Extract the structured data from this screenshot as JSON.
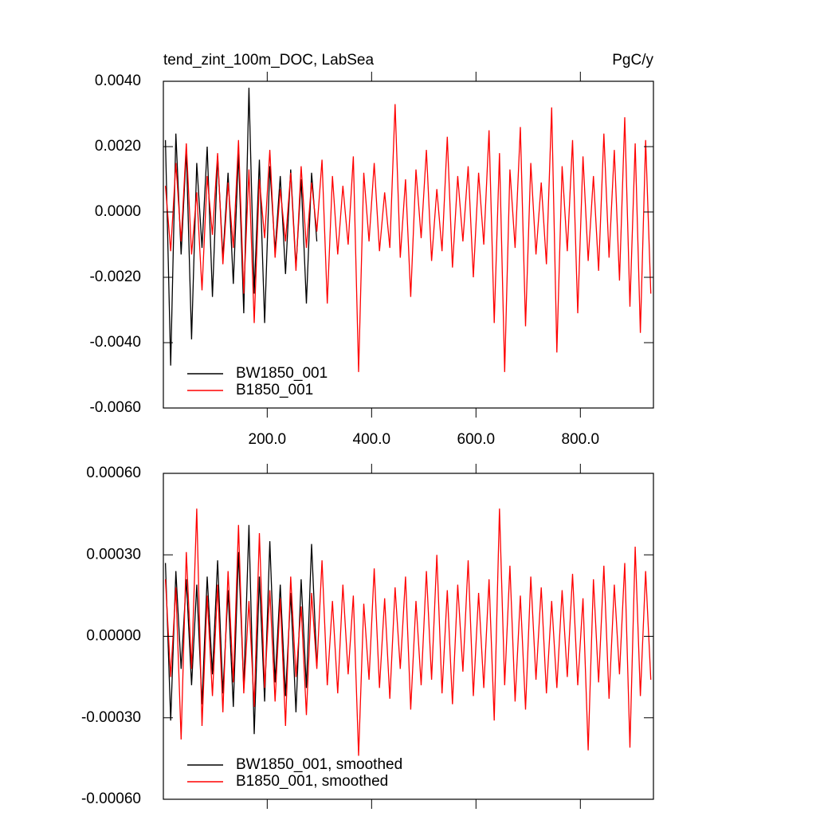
{
  "chart_data": [
    {
      "type": "line",
      "title_left": "tend_zint_100m_DOC, LabSea",
      "title_right": "PgC/y",
      "xlim": [
        1,
        940
      ],
      "xticks": [
        {
          "value": 200,
          "label": "200.0"
        },
        {
          "value": 400,
          "label": "400.0"
        },
        {
          "value": 600,
          "label": "600.0"
        },
        {
          "value": 800,
          "label": "800.0"
        }
      ],
      "xtick_labels": true,
      "ylim": [
        -0.006,
        0.004
      ],
      "yticks": [
        {
          "value": -0.006,
          "label": "-0.0060"
        },
        {
          "value": -0.004,
          "label": "-0.0040"
        },
        {
          "value": -0.002,
          "label": "-0.0020"
        },
        {
          "value": 0,
          "label": "0.0000"
        },
        {
          "value": 0.002,
          "label": "0.0020"
        },
        {
          "value": 0.004,
          "label": "0.0040"
        }
      ],
      "legend": "lower left",
      "series": [
        {
          "name": "BW1850_001",
          "color": "#000000",
          "x": [
            5,
            15,
            25,
            35,
            45,
            55,
            65,
            75,
            85,
            95,
            105,
            115,
            125,
            135,
            145,
            155,
            165,
            175,
            185,
            195,
            205,
            215,
            225,
            235,
            245,
            255,
            265,
            275,
            285,
            295
          ],
          "values": [
            0.0022,
            -0.0047,
            0.0024,
            -0.0013,
            0.0019,
            -0.0039,
            0.0015,
            -0.0011,
            0.002,
            -0.0026,
            0.0017,
            -0.0014,
            0.0012,
            -0.0022,
            0.0018,
            -0.0031,
            0.0038,
            -0.0025,
            0.0016,
            -0.0034,
            0.0014,
            -0.0012,
            0.0011,
            -0.0019,
            0.0013,
            -0.0017,
            0.001,
            -0.0028,
            0.0012,
            -0.0009
          ]
        },
        {
          "name": "B1850_001",
          "color": "#ff0000",
          "x": [
            5,
            15,
            25,
            35,
            45,
            55,
            65,
            75,
            85,
            95,
            105,
            115,
            125,
            135,
            145,
            155,
            165,
            175,
            185,
            195,
            205,
            215,
            225,
            235,
            245,
            255,
            265,
            275,
            285,
            295,
            305,
            315,
            325,
            335,
            345,
            355,
            365,
            375,
            385,
            395,
            405,
            415,
            425,
            435,
            445,
            455,
            465,
            475,
            485,
            495,
            505,
            515,
            525,
            535,
            545,
            555,
            565,
            575,
            585,
            595,
            605,
            615,
            625,
            635,
            645,
            655,
            665,
            675,
            685,
            695,
            705,
            715,
            725,
            735,
            745,
            755,
            765,
            775,
            785,
            795,
            805,
            815,
            825,
            835,
            845,
            855,
            865,
            875,
            885,
            895,
            905,
            915,
            925,
            935
          ],
          "values": [
            0.0008,
            -0.0012,
            0.0015,
            -0.0009,
            0.0021,
            -0.0013,
            0.0006,
            -0.0024,
            0.0011,
            -0.0007,
            0.0018,
            -0.0016,
            0.0009,
            -0.0011,
            0.0022,
            -0.0025,
            0.0013,
            -0.0034,
            0.001,
            -0.0008,
            0.0019,
            -0.0014,
            0.0007,
            -0.0009,
            0.0012,
            -0.0018,
            0.0014,
            -0.0011,
            0.0009,
            -0.0006,
            0.0016,
            -0.0028,
            0.0011,
            -0.0013,
            0.0008,
            -0.001,
            0.0017,
            -0.0049,
            0.0012,
            -0.0009,
            0.0015,
            -0.0012,
            0.0006,
            -0.0011,
            0.0033,
            -0.0014,
            0.001,
            -0.0026,
            0.0013,
            -0.0008,
            0.0019,
            -0.0015,
            0.0007,
            -0.0012,
            0.0023,
            -0.0017,
            0.0011,
            -0.0009,
            0.0014,
            -0.002,
            0.0012,
            -0.001,
            0.0025,
            -0.0034,
            0.0018,
            -0.0049,
            0.0013,
            -0.0011,
            0.0026,
            -0.0035,
            0.0015,
            -0.0013,
            0.0009,
            -0.0016,
            0.0032,
            -0.0043,
            0.0014,
            -0.0012,
            0.0022,
            -0.0031,
            0.0017,
            -0.0015,
            0.0011,
            -0.0018,
            0.0024,
            -0.0014,
            0.0019,
            -0.0021,
            0.0029,
            -0.0029,
            0.0021,
            -0.0037,
            0.0022,
            -0.0025
          ]
        }
      ]
    },
    {
      "type": "line",
      "xlim": [
        1,
        940
      ],
      "xticks": [
        200,
        400,
        600,
        800
      ],
      "xtick_labels": false,
      "ylim": [
        -0.0006,
        0.0006
      ],
      "yticks": [
        {
          "value": -0.0006,
          "label": "-0.00060"
        },
        {
          "value": -0.0003,
          "label": "-0.00030"
        },
        {
          "value": 0,
          "label": "0.00000"
        },
        {
          "value": 0.0003,
          "label": "0.00030"
        },
        {
          "value": 0.0006,
          "label": "0.00060"
        }
      ],
      "legend": "lower left",
      "series": [
        {
          "name": "BW1850_001, smoothed",
          "color": "#000000",
          "x": [
            5,
            15,
            25,
            35,
            45,
            55,
            65,
            75,
            85,
            95,
            105,
            115,
            125,
            135,
            145,
            155,
            165,
            175,
            185,
            195,
            205,
            215,
            225,
            235,
            245,
            255,
            265,
            275,
            285,
            295
          ],
          "values": [
            0.00027,
            -0.00031,
            0.00024,
            -0.00012,
            0.00021,
            -0.00018,
            0.00019,
            -0.00025,
            0.00022,
            -0.00014,
            0.00028,
            -0.00021,
            0.00017,
            -0.00026,
            0.00031,
            -0.00019,
            0.00041,
            -0.00036,
            0.00022,
            -0.00024,
            0.00035,
            -0.00017,
            0.00019,
            -0.00022,
            0.00016,
            -0.00028,
            0.00021,
            -0.00019,
            0.00034,
            -0.00011
          ]
        },
        {
          "name": "B1850_001, smoothed",
          "color": "#ff0000",
          "x": [
            5,
            15,
            25,
            35,
            45,
            55,
            65,
            75,
            85,
            95,
            105,
            115,
            125,
            135,
            145,
            155,
            165,
            175,
            185,
            195,
            205,
            215,
            225,
            235,
            245,
            255,
            265,
            275,
            285,
            295,
            305,
            315,
            325,
            335,
            345,
            355,
            365,
            375,
            385,
            395,
            405,
            415,
            425,
            435,
            445,
            455,
            465,
            475,
            485,
            495,
            505,
            515,
            525,
            535,
            545,
            555,
            565,
            575,
            585,
            595,
            605,
            615,
            625,
            635,
            645,
            655,
            665,
            675,
            685,
            695,
            705,
            715,
            725,
            735,
            745,
            755,
            765,
            775,
            785,
            795,
            805,
            815,
            825,
            835,
            845,
            855,
            865,
            875,
            885,
            895,
            905,
            915,
            925,
            935
          ],
          "values": [
            0.00021,
            -0.00015,
            0.00018,
            -0.00038,
            0.00031,
            -0.00012,
            0.00047,
            -0.00033,
            0.00015,
            -0.00022,
            0.00019,
            -0.00028,
            0.00024,
            -0.00017,
            0.00041,
            -0.00021,
            0.00013,
            -0.00026,
            0.00038,
            -0.00019,
            0.00017,
            -0.00024,
            0.00014,
            -0.00033,
            0.00022,
            -0.00015,
            0.00011,
            -0.00029,
            0.00016,
            -0.00012,
            0.00028,
            -0.00018,
            0.00013,
            -0.00021,
            0.00019,
            -0.00014,
            0.00015,
            -0.00044,
            0.00012,
            -0.00016,
            0.00025,
            -0.00019,
            0.00014,
            -0.00023,
            0.00018,
            -0.00012,
            0.00022,
            -0.00027,
            0.00013,
            -0.00018,
            0.00024,
            -0.00016,
            0.0003,
            -0.00021,
            0.00017,
            -0.00025,
            0.00019,
            -0.00013,
            0.00028,
            -0.00022,
            0.00016,
            -0.00019,
            0.00021,
            -0.00031,
            0.00047,
            -0.00018,
            0.00026,
            -0.00024,
            0.00015,
            -0.00027,
            0.00022,
            -0.00016,
            0.00018,
            -0.00021,
            0.00013,
            -0.00019,
            0.00017,
            -0.00015,
            0.00023,
            -0.00018,
            0.00014,
            -0.00042,
            0.00021,
            -0.00017,
            0.00026,
            -0.00023,
            0.00019,
            -0.00014,
            0.00027,
            -0.00041,
            0.00033,
            -0.00022,
            0.00024,
            -0.00016
          ]
        }
      ]
    }
  ]
}
